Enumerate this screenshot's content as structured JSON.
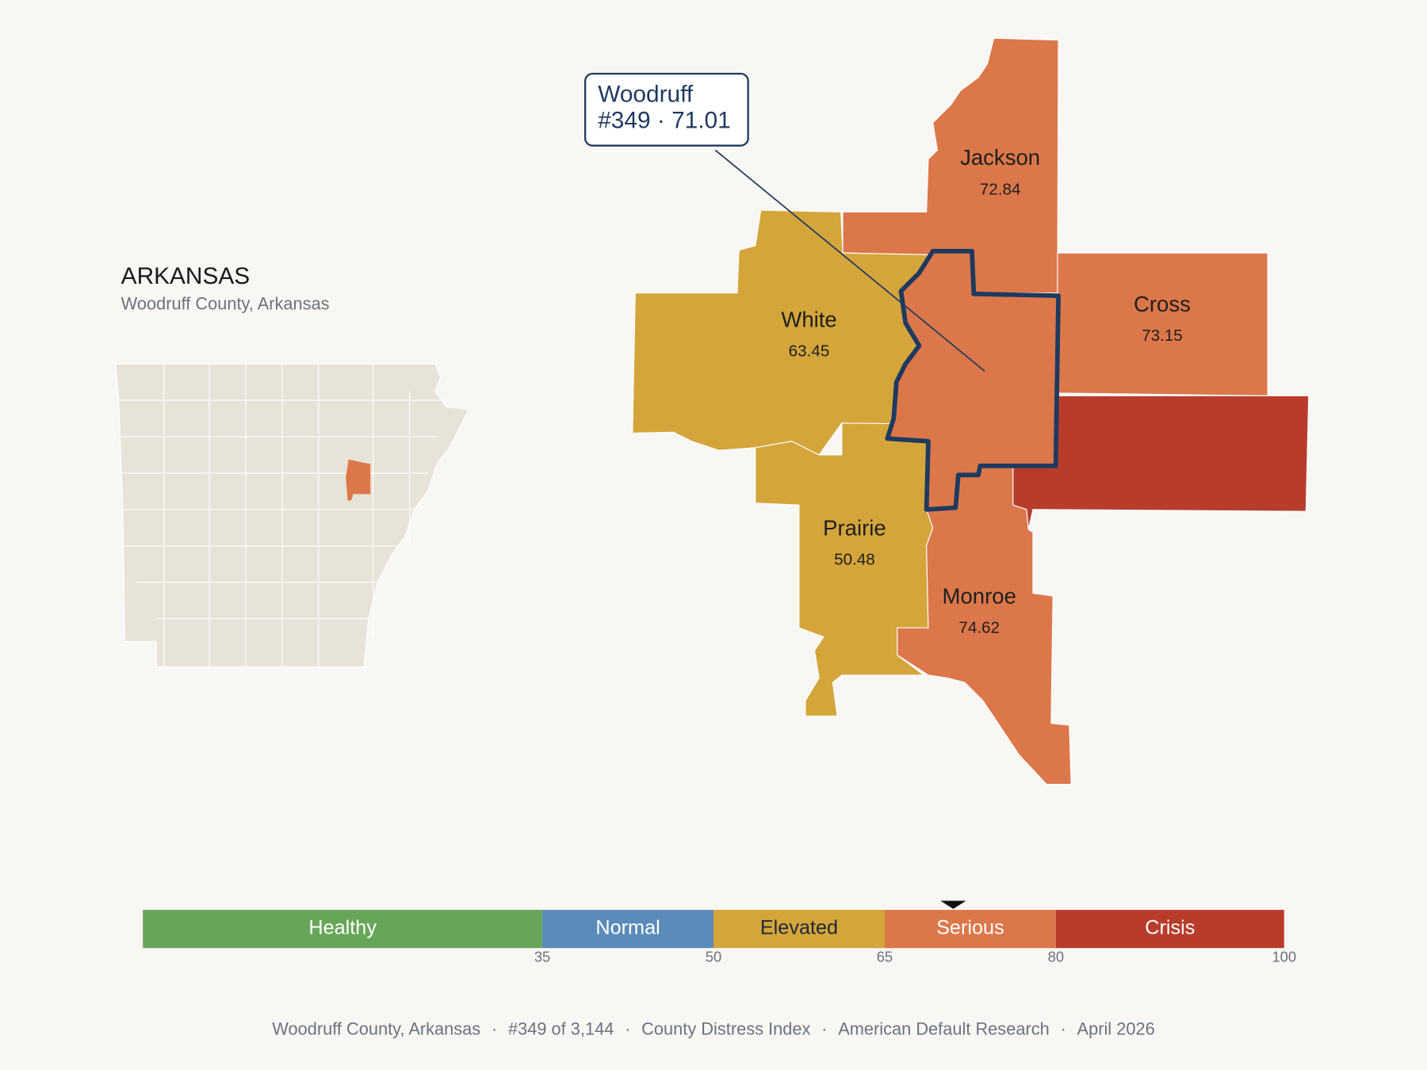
{
  "header": {
    "title": "ARKANSAS",
    "subtitle": "Woodruff County, Arkansas"
  },
  "callout": {
    "name": "Woodruff",
    "detail": "#349 · 71.01",
    "score": 71.01
  },
  "counties": [
    {
      "name": "Jackson",
      "score": 72.84
    },
    {
      "name": "White",
      "score": 63.45
    },
    {
      "name": "Cross",
      "score": 73.15
    },
    {
      "name": "Prairie",
      "score": 50.48
    },
    {
      "name": "Monroe",
      "score": 74.62
    }
  ],
  "scale": {
    "range": [
      0,
      100
    ],
    "ticks": [
      35,
      50,
      65,
      80,
      100
    ],
    "bands": [
      {
        "label": "Healthy",
        "to": 35,
        "color": "#67a659",
        "text_color": "#ffffff"
      },
      {
        "label": "Normal",
        "to": 50,
        "color": "#5b8bb8",
        "text_color": "#ffffff"
      },
      {
        "label": "Elevated",
        "to": 65,
        "color": "#d4a53a",
        "text_color": "#1f2937"
      },
      {
        "label": "Serious",
        "to": 80,
        "color": "#dc774a",
        "text_color": "#ffffff"
      },
      {
        "label": "Crisis",
        "to": 100,
        "color": "#b83c2c",
        "text_color": "#ffffff"
      }
    ]
  },
  "footer": {
    "separator": "·",
    "parts": [
      "Woodruff County, Arkansas",
      "#349 of 3,144",
      "County Distress Index",
      "American Default Research",
      "April 2026"
    ]
  }
}
